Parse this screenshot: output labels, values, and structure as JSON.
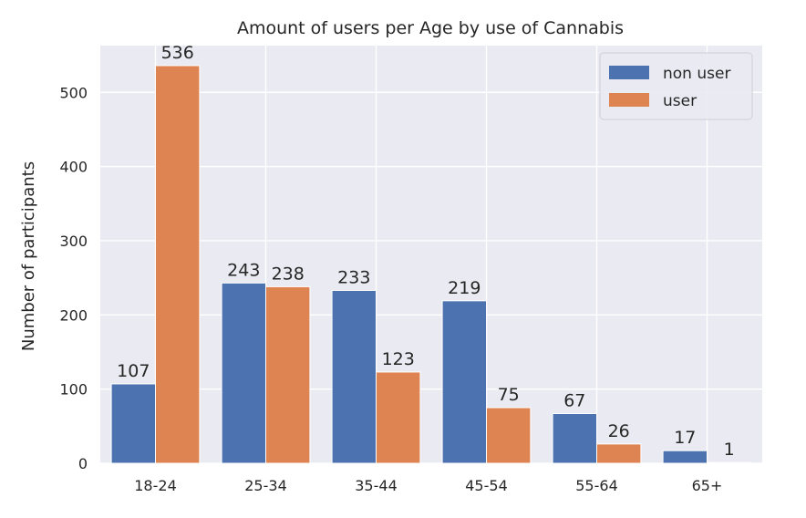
{
  "chart_data": {
    "type": "bar",
    "title": "Amount of users per Age by use of Cannabis",
    "xlabel": "",
    "ylabel": "Number of participants",
    "categories": [
      "18-24",
      "25-34",
      "35-44",
      "45-54",
      "55-64",
      "65+"
    ],
    "series": [
      {
        "name": "non user",
        "values": [
          107,
          243,
          233,
          219,
          67,
          17
        ],
        "color": "#4c72b0"
      },
      {
        "name": "user",
        "values": [
          536,
          238,
          123,
          75,
          26,
          1
        ],
        "color": "#dd8452"
      }
    ],
    "ylim": [
      0,
      563
    ],
    "yticks": [
      0,
      100,
      200,
      300,
      400,
      500
    ],
    "grid": true,
    "legend": "top-right",
    "background": "#eaeaf2",
    "grid_color": "#ffffff"
  }
}
